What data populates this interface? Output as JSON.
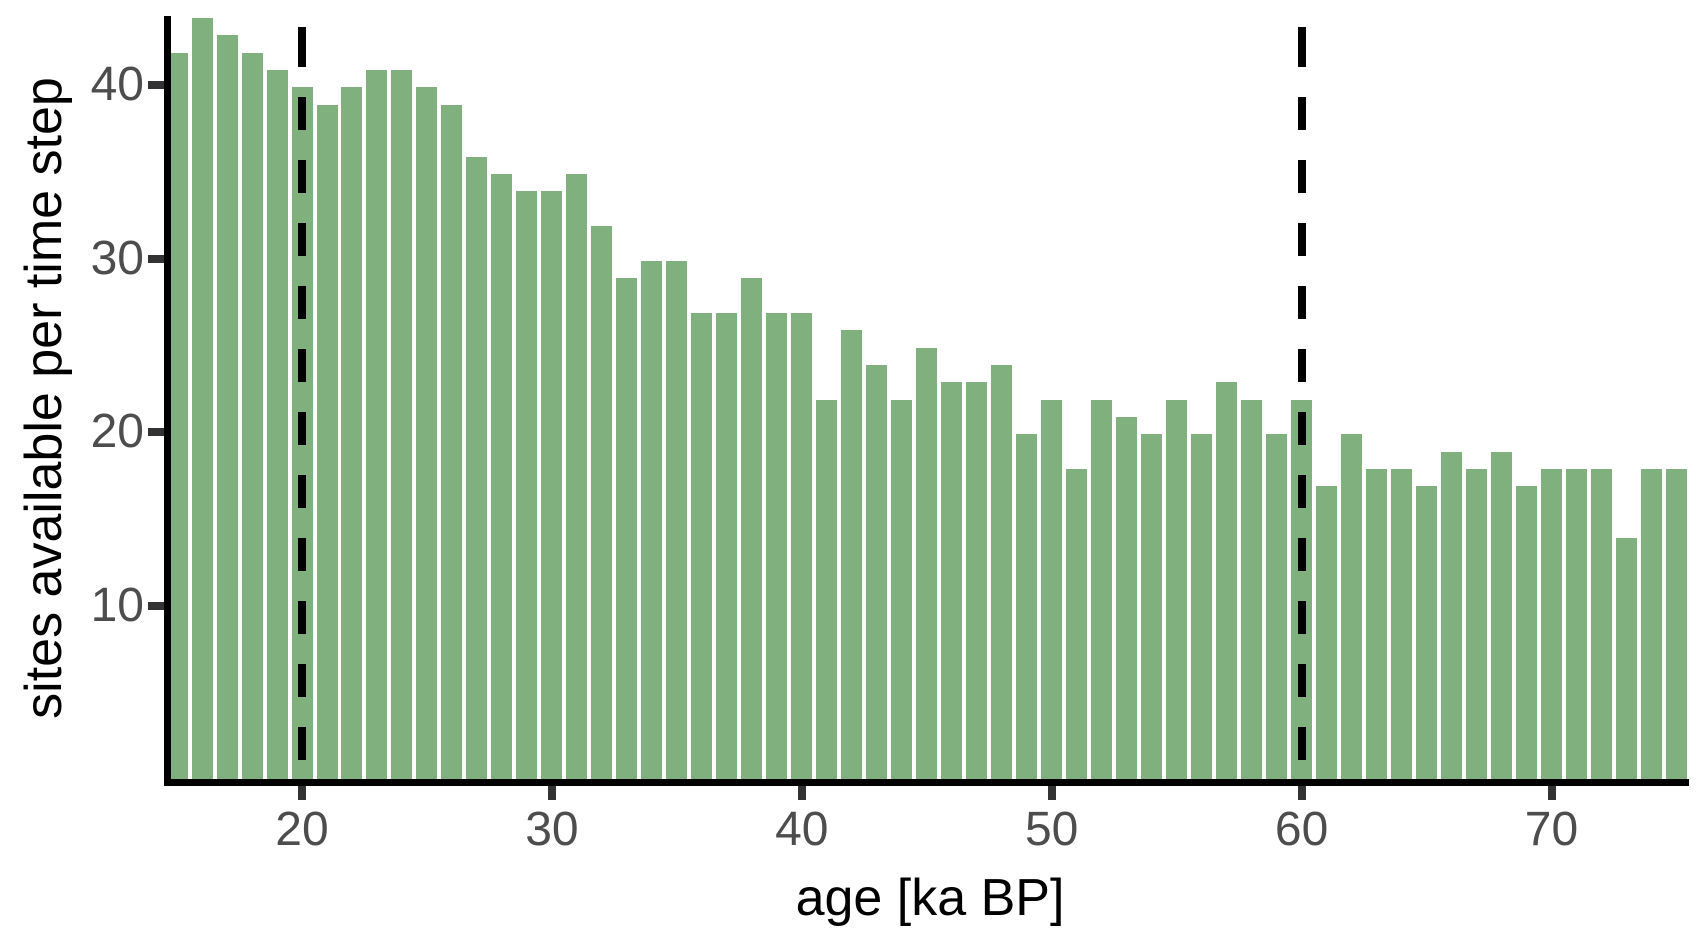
{
  "chart_data": {
    "type": "bar",
    "title": "",
    "xlabel": "age [ka BP]",
    "ylabel": "sites available per time step",
    "x": [
      15,
      16,
      17,
      18,
      19,
      20,
      21,
      22,
      23,
      24,
      25,
      26,
      27,
      28,
      29,
      30,
      31,
      32,
      33,
      34,
      35,
      36,
      37,
      38,
      39,
      40,
      41,
      42,
      43,
      44,
      45,
      46,
      47,
      48,
      49,
      50,
      51,
      52,
      53,
      54,
      55,
      56,
      57,
      58,
      59,
      60,
      61,
      62,
      63,
      64,
      65,
      66,
      67,
      68,
      69,
      70,
      71,
      72,
      73,
      74,
      75
    ],
    "values": [
      42,
      44,
      43,
      42,
      41,
      40,
      39,
      40,
      41,
      41,
      40,
      39,
      36,
      35,
      34,
      34,
      35,
      32,
      29,
      30,
      30,
      27,
      27,
      29,
      27,
      27,
      22,
      26,
      24,
      22,
      25,
      23,
      23,
      24,
      20,
      22,
      18,
      22,
      21,
      20,
      22,
      20,
      23,
      22,
      20,
      22,
      17,
      20,
      18,
      18,
      17,
      19,
      18,
      19,
      17,
      18,
      18,
      18,
      14,
      18,
      18
    ],
    "bar_width": 1,
    "x_range": [
      14.76,
      75.5
    ],
    "y_range": [
      0,
      44
    ],
    "x_ticks": [
      20,
      30,
      40,
      50,
      60,
      70
    ],
    "y_ticks": [
      10,
      20,
      30,
      40
    ],
    "vlines": [
      20,
      60
    ],
    "grid": false,
    "legend": "none",
    "colors": {
      "bar_fill": "#7FB07D",
      "bar_border": "#FFFFFF",
      "axis_line": "#000000",
      "vline": "#000000",
      "tick_mark": "#333333",
      "tick_label": "#4D4D4D",
      "axis_title": "#000000",
      "background": "#FFFFFF"
    }
  }
}
